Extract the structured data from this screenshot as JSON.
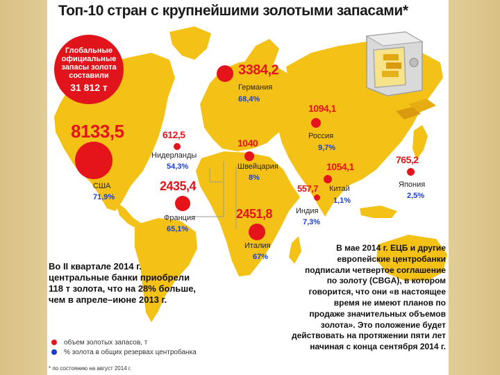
{
  "title": "Топ-10 стран с крупнейшими золотыми запасами*",
  "global_reserves": {
    "label": "Глобальные официальные запасы золота составили",
    "value": "31 812 т"
  },
  "countries": [
    {
      "id": "usa",
      "name": "США",
      "value": "8133,5",
      "share": "71,9%"
    },
    {
      "id": "germany",
      "name": "Германия",
      "value": "3384,2",
      "share": "68,4%"
    },
    {
      "id": "netherlands",
      "name": "Нидерланды",
      "value": "612,5",
      "share": "54,3%"
    },
    {
      "id": "switzerland",
      "name": "Швейцария",
      "value": "1040",
      "share": "8%"
    },
    {
      "id": "russia",
      "name": "Россия",
      "value": "1094,1",
      "share": "9,7%"
    },
    {
      "id": "france",
      "name": "Франция",
      "value": "2435,4",
      "share": "65,1%"
    },
    {
      "id": "italy",
      "name": "Италия",
      "value": "2451,8",
      "share": "67%"
    },
    {
      "id": "china",
      "name": "Китай",
      "value": "1054,1",
      "share": "1,1%"
    },
    {
      "id": "india",
      "name": "Индия",
      "value": "557,7",
      "share": "7,3%"
    },
    {
      "id": "japan",
      "name": "Япония",
      "value": "765,2",
      "share": "2,5%"
    }
  ],
  "note_left": "Во II квартале 2014 г.\nцентральные банки приобрели\n118 т золота, что  на 28% больше,\nчем в апреле–июне 2013 г.",
  "note_right": "В мае 2014 г. ЕЦБ и другие\nевропейские центробанки\nподписали четвертое  соглашение\nпо золоту (CBGA), в котором\nговорится, что они  «в настоящее\nвремя не имеют планов по\nпродаже значительных объемов\nзолота». Это положение будет\nдействовать на протяжении пяти лет\nначиная с конца сентября 2014 г.",
  "legend": {
    "reserves": "объем золотых запасов, т",
    "share": "% золота в общих резервах центробанка",
    "reserves_color": "#e5131a",
    "share_color": "#1a3fd0"
  },
  "footnote": "* по состоянию на август 2014 г.",
  "colors": {
    "land": "#f4c217",
    "marker": "#e5131a",
    "percent": "#1a3fd0",
    "background": "#e8d6a2"
  }
}
